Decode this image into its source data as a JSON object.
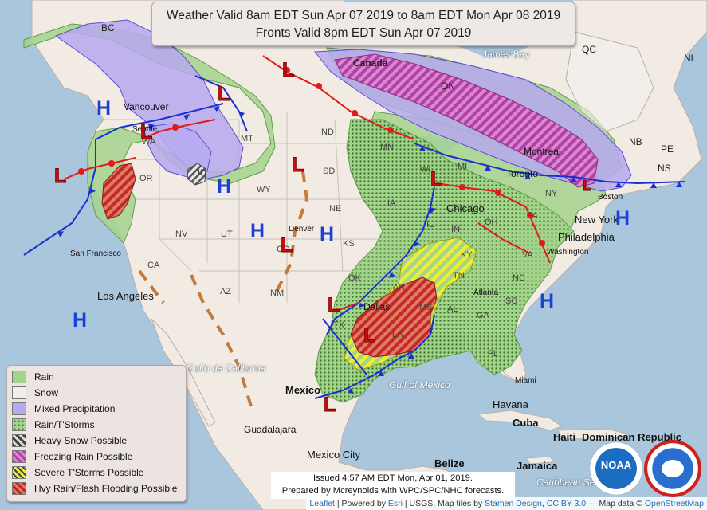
{
  "title": {
    "line1": "Weather Valid 8am EDT Sun Apr 07 2019 to 8am EDT Mon Apr 08 2019",
    "line2": "Fronts Valid 8pm EDT Sun Apr 07 2019"
  },
  "legend": [
    {
      "label": "Rain",
      "color": "#a4d38c"
    },
    {
      "label": "Snow",
      "color": "#f1ede9"
    },
    {
      "label": "Mixed Precipitation",
      "color": "#b7a9ee"
    },
    {
      "label": "Rain/T'Storms",
      "color": "#9ccb83"
    },
    {
      "label": "Heavy Snow Possible",
      "color": "#888888"
    },
    {
      "label": "Freezing Rain Possible",
      "color": "#c24cb6"
    },
    {
      "label": "Severe T'Storms Possible",
      "color": "#f2ee3a"
    },
    {
      "label": "Hvy Rain/Flash Flooding Possible",
      "color": "#d9342e"
    }
  ],
  "issued": {
    "line1": "Issued 4:57 AM EDT Mon, Apr 01, 2019.",
    "line2": "Prepared by Mcreynolds with WPC/SPC/NHC forecasts."
  },
  "attribution": {
    "leaflet": "Leaflet",
    "powered": "| Powered by",
    "esri": "Esri",
    "usgs": "| USGS, Map tiles by",
    "stamen": "Stamen Design",
    "ccby": "CC BY 3.0",
    "mapdata": "— Map data ©",
    "osm": "OpenStreetMap"
  },
  "pressure_centers": [
    {
      "type": "H",
      "id": "h-vancouver"
    },
    {
      "type": "H",
      "id": "h-idaho"
    },
    {
      "type": "H",
      "id": "h-colorado"
    },
    {
      "type": "H",
      "id": "h-kansas"
    },
    {
      "type": "H",
      "id": "h-pacific"
    },
    {
      "type": "H",
      "id": "h-atlantic-south"
    },
    {
      "type": "H",
      "id": "h-atlantic-north"
    },
    {
      "type": "L",
      "id": "l-canada-north"
    },
    {
      "type": "L",
      "id": "l-alberta"
    },
    {
      "type": "L",
      "id": "l-washington"
    },
    {
      "type": "L",
      "id": "l-oregon-coast"
    },
    {
      "type": "L",
      "id": "l-south-dakota"
    },
    {
      "type": "L",
      "id": "l-colorado"
    },
    {
      "type": "L",
      "id": "l-great-lakes"
    },
    {
      "type": "L",
      "id": "l-texas"
    },
    {
      "type": "L",
      "id": "l-louisiana"
    },
    {
      "type": "L",
      "id": "l-mexico"
    },
    {
      "type": "L",
      "id": "l-maine"
    }
  ],
  "labels": {
    "provinces": [
      "BC",
      "Canada",
      "ON",
      "QC",
      "NL",
      "NB",
      "PE",
      "NS",
      "James Bay"
    ],
    "states": [
      "WA",
      "OR",
      "ID",
      "MT",
      "ND",
      "SD",
      "WY",
      "NE",
      "NV",
      "UT",
      "CO",
      "KS",
      "CA",
      "AZ",
      "NM",
      "OK",
      "TX",
      "MN",
      "WI",
      "MI",
      "IA",
      "IL",
      "IN",
      "OH",
      "PA",
      "NY",
      "KY",
      "TN",
      "AR",
      "MS",
      "AL",
      "GA",
      "SC",
      "NC",
      "VA",
      "LA",
      "FL"
    ],
    "cities": [
      "Vancouver",
      "Seattle",
      "Denver",
      "Chicago",
      "Toronto",
      "Montreal",
      "Boston",
      "New York",
      "Philadelphia",
      "Washington",
      "San Francisco",
      "Los Angeles",
      "Dallas",
      "Atlanta",
      "Miami",
      "Havana",
      "Cuba",
      "Haiti",
      "Dominican Republic",
      "Jamaica",
      "Belize",
      "Mexico",
      "Mexico City",
      "Guadalajara"
    ],
    "water": [
      "Golfo de California",
      "Gulf of Mexico",
      "Caribbean Se"
    ]
  },
  "logos": [
    "NOAA",
    "National Weather Service"
  ]
}
